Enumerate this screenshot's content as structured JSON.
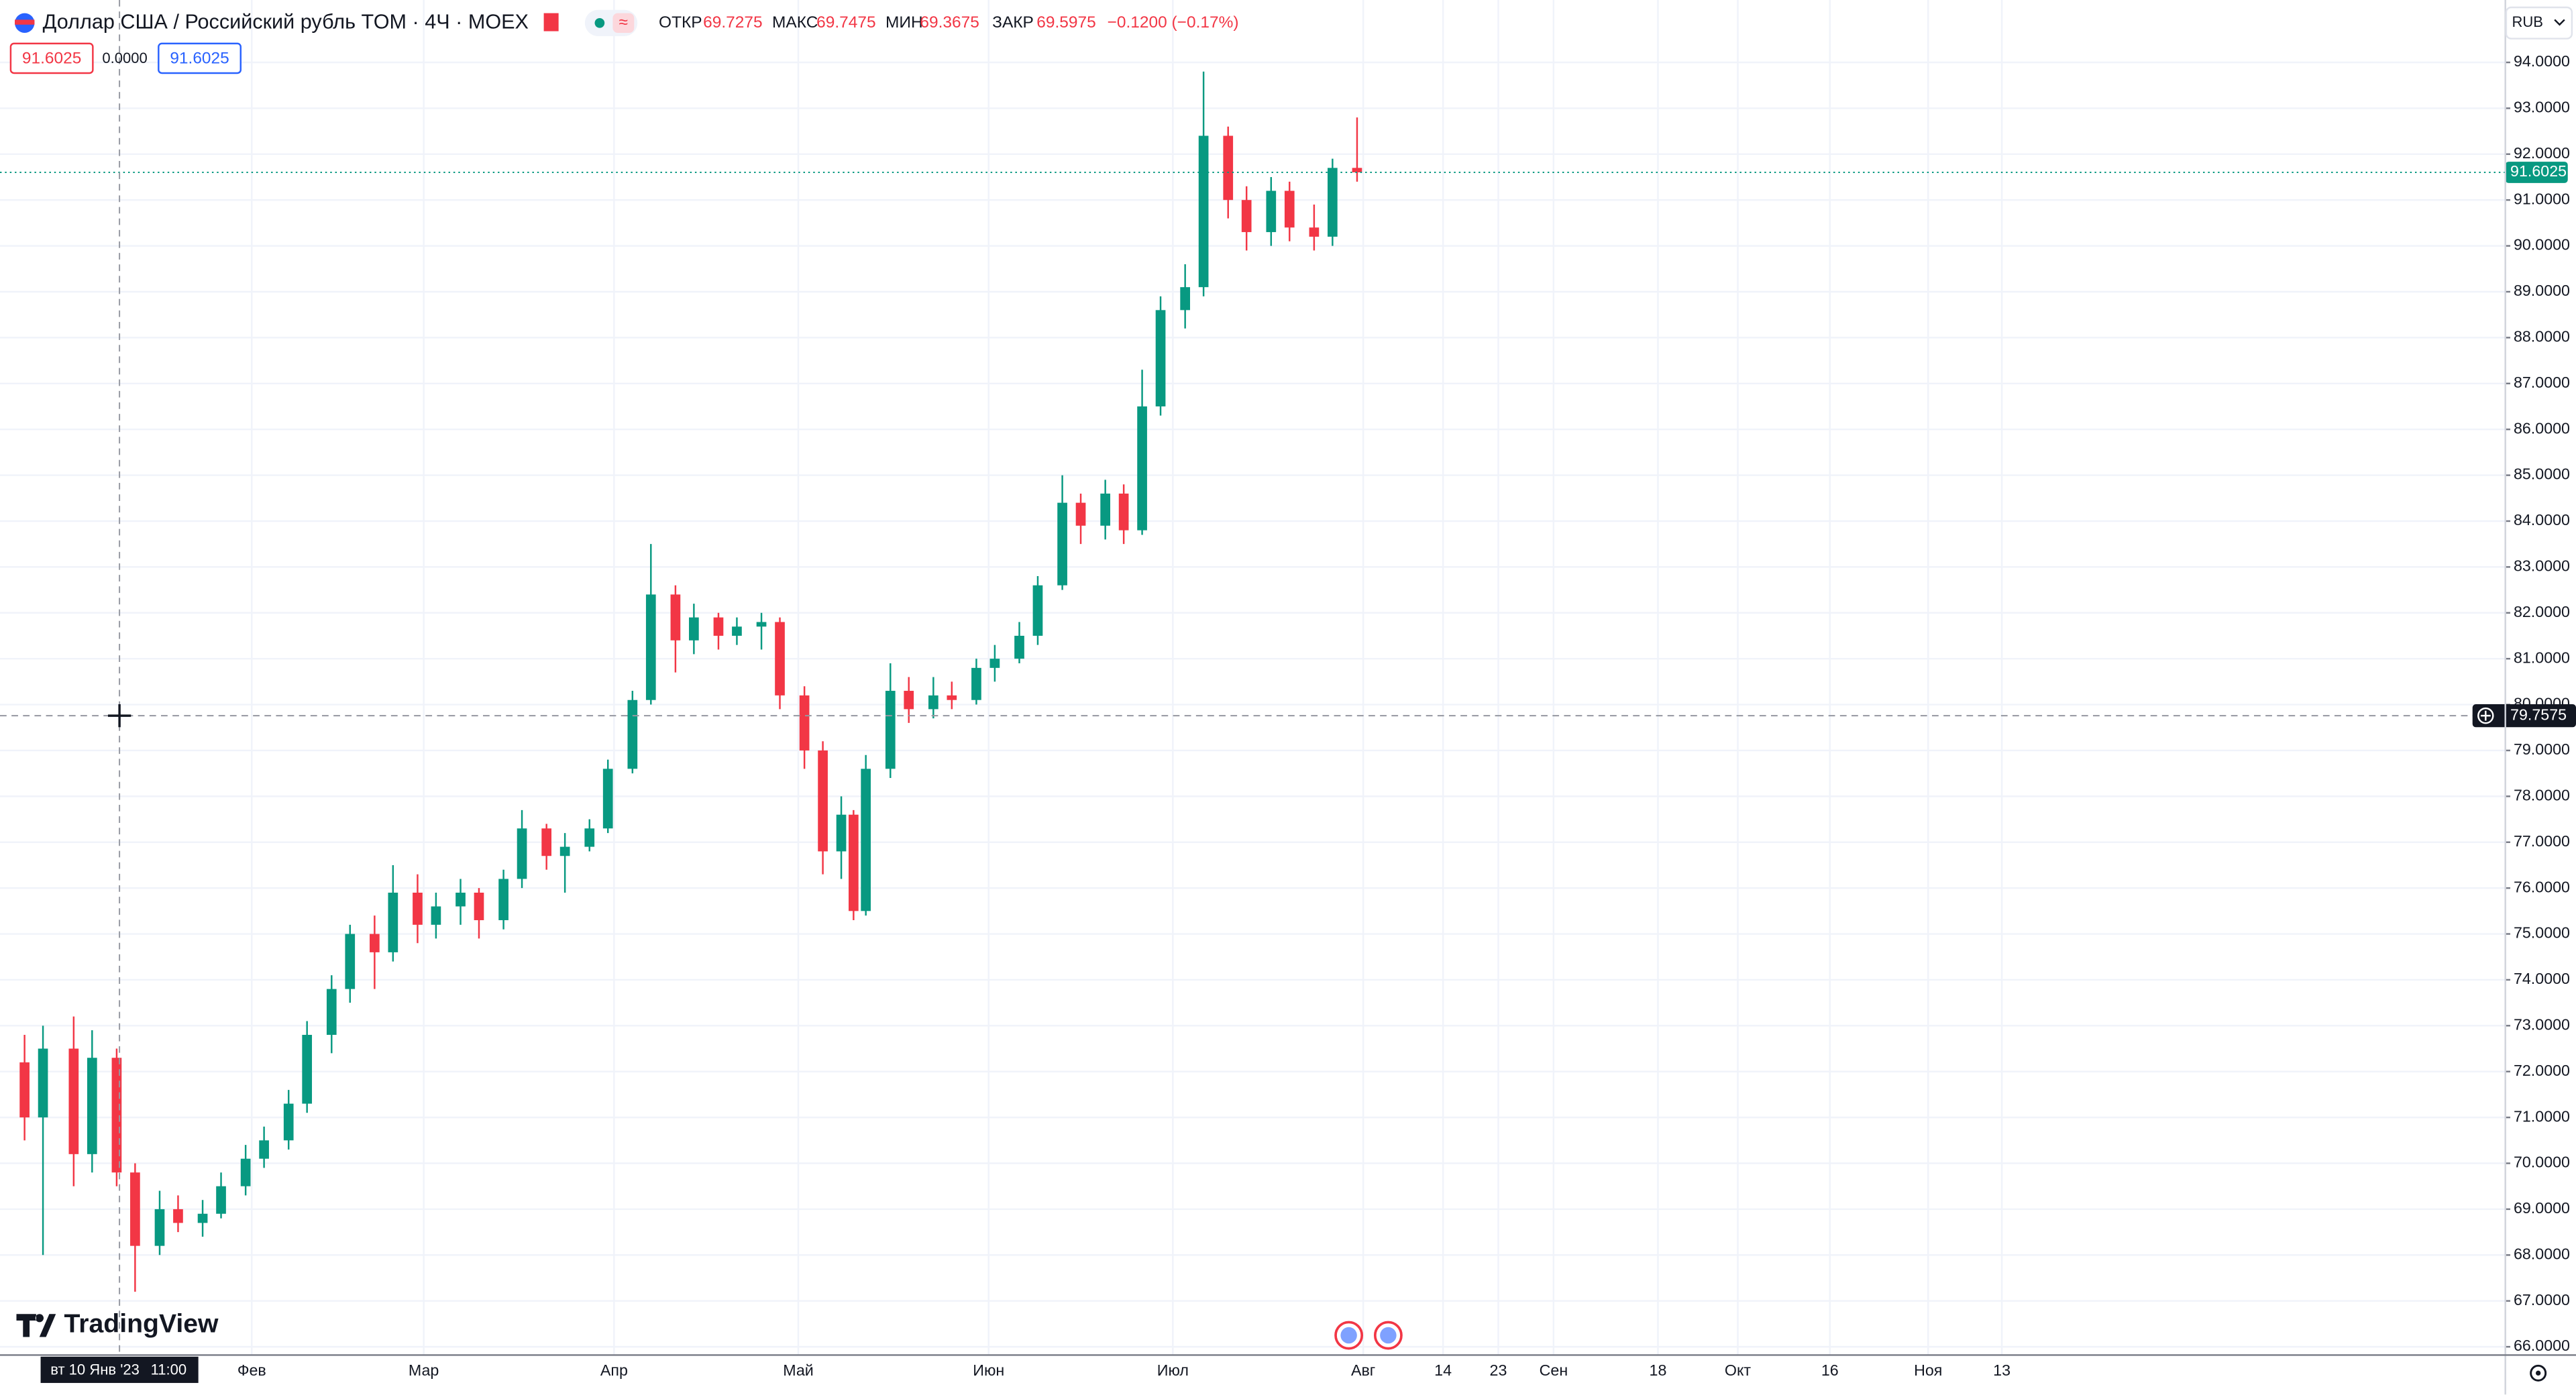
{
  "chart_data": {
    "type": "candlestick",
    "title": "Доллар США / Российский рубль TOM · 4Ч · MOEX",
    "ohlc_legend": [
      {
        "label": "ОТКР",
        "value": 69.7275
      },
      {
        "label": "МАКС",
        "value": 69.7475
      },
      {
        "label": "МИН",
        "value": 69.3675
      },
      {
        "label": "ЗАКР",
        "value": 69.5975
      }
    ],
    "change": "−0.1200 (−0.17%)",
    "sell": 91.6025,
    "spread": {
      "value": 0,
      "label": "0.0000"
    },
    "buy": 91.6025,
    "currency": "RUB",
    "brand": "TradingView",
    "up_color": "#089981",
    "down_color": "#f23645",
    "x": [
      "2022-12-26",
      "2022-12-29",
      "2023-01-03",
      "2023-01-06",
      "2023-01-10",
      "2023-01-13",
      "2023-01-17",
      "2023-01-20",
      "2023-01-24",
      "2023-01-27",
      "2023-01-31",
      "2023-02-03",
      "2023-02-07",
      "2023-02-10",
      "2023-02-14",
      "2023-02-17",
      "2023-02-21",
      "2023-02-24",
      "2023-02-28",
      "2023-03-03",
      "2023-03-07",
      "2023-03-10",
      "2023-03-14",
      "2023-03-17",
      "2023-03-21",
      "2023-03-24",
      "2023-03-28",
      "2023-03-31",
      "2023-04-04",
      "2023-04-07",
      "2023-04-11",
      "2023-04-14",
      "2023-04-18",
      "2023-04-21",
      "2023-04-25",
      "2023-04-28",
      "2023-05-02",
      "2023-05-05",
      "2023-05-08",
      "2023-05-10",
      "2023-05-12",
      "2023-05-16",
      "2023-05-19",
      "2023-05-23",
      "2023-05-26",
      "2023-05-30",
      "2023-06-02",
      "2023-06-06",
      "2023-06-09",
      "2023-06-13",
      "2023-06-16",
      "2023-06-20",
      "2023-06-23",
      "2023-06-26",
      "2023-06-29",
      "2023-07-03",
      "2023-07-06",
      "2023-07-10",
      "2023-07-13",
      "2023-07-17",
      "2023-07-20",
      "2023-07-24",
      "2023-07-27",
      "2023-07-31"
    ],
    "open": [
      72.2,
      71.0,
      72.5,
      70.2,
      72.3,
      69.8,
      68.2,
      69.0,
      68.7,
      68.9,
      69.5,
      70.1,
      70.5,
      71.3,
      72.8,
      73.8,
      75.0,
      74.6,
      75.9,
      75.2,
      75.6,
      75.9,
      75.3,
      76.2,
      77.3,
      76.7,
      76.9,
      77.3,
      78.6,
      80.1,
      82.4,
      81.4,
      81.9,
      81.5,
      81.7,
      81.8,
      80.2,
      79.0,
      76.8,
      77.6,
      75.5,
      78.6,
      80.3,
      79.9,
      80.2,
      80.1,
      80.8,
      81.0,
      81.5,
      82.6,
      84.4,
      83.9,
      84.6,
      83.8,
      86.5,
      88.6,
      89.1,
      92.4,
      91.0,
      90.3,
      91.2,
      90.4,
      90.2,
      91.7
    ],
    "high": [
      72.8,
      73.0,
      73.2,
      72.9,
      72.5,
      70.0,
      69.4,
      69.3,
      69.2,
      69.8,
      70.4,
      70.8,
      71.6,
      73.1,
      74.1,
      75.2,
      75.4,
      76.5,
      76.3,
      75.9,
      76.2,
      76.0,
      76.4,
      77.7,
      77.4,
      77.2,
      77.5,
      78.8,
      80.3,
      83.5,
      82.6,
      82.2,
      82.0,
      81.9,
      82.0,
      81.9,
      80.4,
      79.2,
      78.0,
      77.7,
      78.9,
      80.9,
      80.6,
      80.6,
      80.5,
      81.0,
      81.3,
      81.8,
      82.8,
      85.0,
      84.6,
      84.9,
      84.8,
      87.3,
      88.9,
      89.6,
      93.8,
      92.6,
      91.3,
      91.5,
      91.4,
      90.9,
      91.9,
      92.8
    ],
    "low": [
      70.5,
      68.0,
      69.5,
      69.8,
      69.5,
      67.2,
      68.0,
      68.5,
      68.4,
      68.8,
      69.3,
      69.9,
      70.3,
      71.1,
      72.4,
      73.5,
      73.8,
      74.4,
      74.8,
      74.9,
      75.2,
      74.9,
      75.1,
      76.0,
      76.4,
      75.9,
      76.8,
      77.2,
      78.5,
      80.0,
      80.7,
      81.1,
      81.2,
      81.3,
      81.2,
      79.9,
      78.6,
      76.3,
      76.2,
      75.3,
      75.4,
      78.4,
      79.6,
      79.7,
      79.9,
      80.0,
      80.5,
      80.9,
      81.3,
      82.5,
      83.5,
      83.6,
      83.5,
      83.7,
      86.3,
      88.2,
      88.9,
      90.6,
      89.9,
      90.0,
      90.1,
      89.9,
      90.0,
      91.4
    ],
    "close": [
      71.0,
      72.5,
      70.2,
      72.3,
      69.8,
      68.2,
      69.0,
      68.7,
      68.9,
      69.5,
      70.1,
      70.5,
      71.3,
      72.8,
      73.8,
      75.0,
      74.6,
      75.9,
      75.2,
      75.6,
      75.9,
      75.3,
      76.2,
      77.3,
      76.7,
      76.9,
      77.3,
      78.6,
      80.1,
      82.4,
      81.4,
      81.9,
      81.5,
      81.7,
      81.8,
      80.2,
      79.0,
      76.8,
      77.6,
      75.5,
      78.6,
      80.3,
      79.9,
      80.2,
      80.1,
      80.8,
      81.0,
      81.5,
      82.6,
      84.4,
      83.9,
      84.6,
      83.8,
      86.5,
      88.6,
      89.1,
      92.4,
      91.0,
      90.3,
      91.2,
      90.4,
      90.2,
      91.7,
      91.6025
    ],
    "last_price": 91.6025,
    "crosshair": {
      "x": "2023-01-10T11:00",
      "x_label": [
        "вт 10 Янв '23",
        "11:00"
      ],
      "y": 79.7575
    },
    "xlim": [
      "2022-12-22",
      "2024-02-03"
    ],
    "xticks": [
      {
        "value": "2023-02-01",
        "label": "Фев"
      },
      {
        "value": "2023-03-01",
        "label": "Мар"
      },
      {
        "value": "2023-04-01",
        "label": "Апр"
      },
      {
        "value": "2023-05-01",
        "label": "Май"
      },
      {
        "value": "2023-06-01",
        "label": "Июн"
      },
      {
        "value": "2023-07-01",
        "label": "Июл"
      },
      {
        "value": "2023-08-01",
        "label": "Авг"
      },
      {
        "value": "2023-08-14",
        "label": "14"
      },
      {
        "value": "2023-08-23",
        "label": "23"
      },
      {
        "value": "2023-09-01",
        "label": "Сен"
      },
      {
        "value": "2023-09-18",
        "label": "18"
      },
      {
        "value": "2023-10-01",
        "label": "Окт"
      },
      {
        "value": "2023-10-16",
        "label": "16"
      },
      {
        "value": "2023-11-01",
        "label": "Ноя"
      },
      {
        "value": "2023-11-13",
        "label": "13"
      }
    ],
    "ylim": [
      65.82,
      95.36
    ],
    "yticks": [
      {
        "value": 66,
        "label": "66.0000"
      },
      {
        "value": 67,
        "label": "67.0000"
      },
      {
        "value": 68,
        "label": "68.0000"
      },
      {
        "value": 69,
        "label": "69.0000"
      },
      {
        "value": 70,
        "label": "70.0000"
      },
      {
        "value": 71,
        "label": "71.0000"
      },
      {
        "value": 72,
        "label": "72.0000"
      },
      {
        "value": 73,
        "label": "73.0000"
      },
      {
        "value": 74,
        "label": "74.0000"
      },
      {
        "value": 75,
        "label": "75.0000"
      },
      {
        "value": 76,
        "label": "76.0000"
      },
      {
        "value": 77,
        "label": "77.0000"
      },
      {
        "value": 78,
        "label": "78.0000"
      },
      {
        "value": 79,
        "label": "79.0000"
      },
      {
        "value": 80,
        "label": "80.0000"
      },
      {
        "value": 81,
        "label": "81.0000"
      },
      {
        "value": 82,
        "label": "82.0000"
      },
      {
        "value": 83,
        "label": "83.0000"
      },
      {
        "value": 84,
        "label": "84.0000"
      },
      {
        "value": 85,
        "label": "85.0000"
      },
      {
        "value": 86,
        "label": "86.0000"
      },
      {
        "value": 87,
        "label": "87.0000"
      },
      {
        "value": 88,
        "label": "88.0000"
      },
      {
        "value": 89,
        "label": "89.0000"
      },
      {
        "value": 90,
        "label": "90.0000"
      },
      {
        "value": 91,
        "label": "91.0000"
      },
      {
        "value": 92,
        "label": "92.0000"
      },
      {
        "value": 93,
        "label": "93.0000"
      },
      {
        "value": 94,
        "label": "94.0000"
      }
    ],
    "grid": true
  }
}
